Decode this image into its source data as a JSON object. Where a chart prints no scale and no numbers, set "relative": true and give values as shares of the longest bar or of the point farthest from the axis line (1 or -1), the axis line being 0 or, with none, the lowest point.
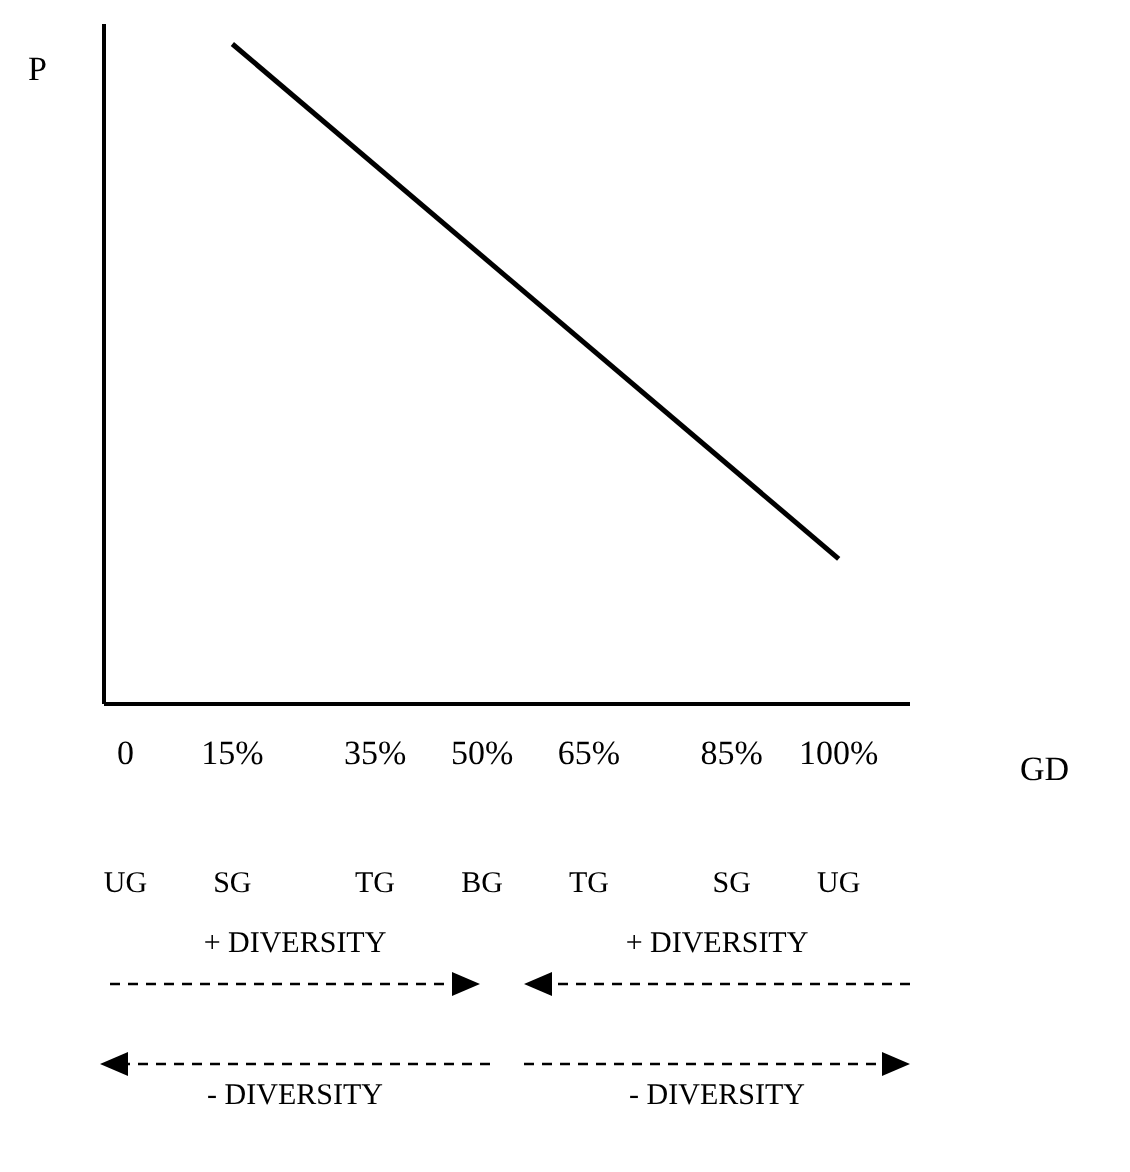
{
  "chart_data": {
    "type": "line",
    "relative": true,
    "xlabel": "GD",
    "ylabel": "P",
    "xlim": [
      -3,
      110
    ],
    "xticks": [
      0,
      {
        "value": 15,
        "label": "15%"
      },
      {
        "value": 35,
        "label": "35%"
      },
      {
        "value": 50,
        "label": "50%"
      },
      {
        "value": 65,
        "label": "65%"
      },
      {
        "value": 85,
        "label": "85%"
      },
      {
        "value": 100,
        "label": "100%"
      }
    ],
    "series": [
      {
        "color": "#000000",
        "x": [
          15,
          100
        ],
        "values": [
          1,
          0.22
        ]
      }
    ],
    "annotations": [
      "UG",
      "SG",
      "TG",
      "BG",
      "TG",
      "SG",
      "UG",
      "+ DIVERSITY",
      "+ DIVERSITY",
      "- DIVERSITY",
      "- DIVERSITY"
    ]
  }
}
